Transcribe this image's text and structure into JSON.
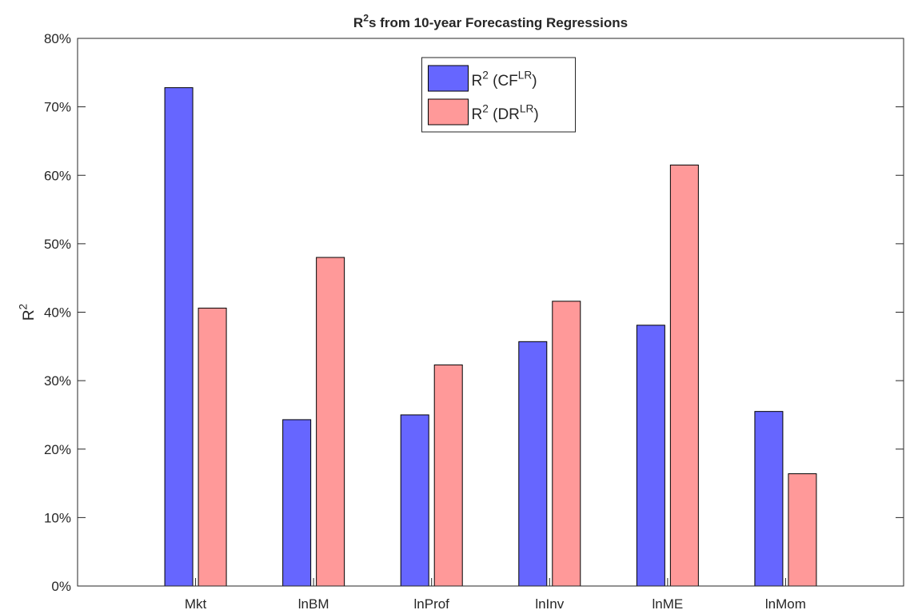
{
  "chart_data": {
    "type": "bar",
    "title": [
      {
        "text": "R"
      },
      {
        "text": "2",
        "sup": true
      },
      {
        "text": "s from 10-year Forecasting Regressions"
      }
    ],
    "ylabel": [
      {
        "text": "R"
      },
      {
        "text": "2",
        "sup": true
      }
    ],
    "categories": [
      "Mkt",
      "lnBM",
      "lnProf",
      "lnInv",
      "lnME",
      "lnMom"
    ],
    "series": [
      {
        "name": [
          {
            "text": "R"
          },
          {
            "text": "2",
            "sup": true
          },
          {
            "text": " (CF"
          },
          {
            "text": "LR",
            "sup": true
          },
          {
            "text": ")"
          }
        ],
        "color": "#6666ff",
        "values": [
          72.8,
          24.3,
          25.0,
          35.7,
          38.1,
          25.5
        ]
      },
      {
        "name": [
          {
            "text": "R"
          },
          {
            "text": "2",
            "sup": true
          },
          {
            "text": " (DR"
          },
          {
            "text": "LR",
            "sup": true
          },
          {
            "text": ")"
          }
        ],
        "color": "#ff9999",
        "values": [
          40.6,
          48.0,
          32.3,
          41.6,
          61.5,
          16.4
        ]
      }
    ],
    "ylim": [
      0,
      80
    ],
    "yticks": [
      {
        "value": 0,
        "label": "0%"
      },
      {
        "value": 10,
        "label": "10%"
      },
      {
        "value": 20,
        "label": "20%"
      },
      {
        "value": 30,
        "label": "30%"
      },
      {
        "value": 40,
        "label": "40%"
      },
      {
        "value": 50,
        "label": "50%"
      },
      {
        "value": 60,
        "label": "60%"
      },
      {
        "value": 70,
        "label": "70%"
      },
      {
        "value": 80,
        "label": "80%"
      }
    ],
    "grid": false,
    "legend": "north"
  }
}
